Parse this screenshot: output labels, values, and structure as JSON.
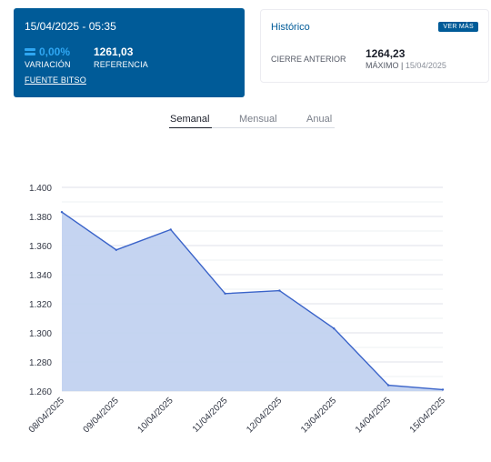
{
  "summary": {
    "datetime": "15/04/2025 - 05:35",
    "variation_value": "0,00%",
    "variation_label": "VARIACIÓN",
    "reference_value": "1261,03",
    "reference_label": "REFERENCIA",
    "source_link": "FUENTE BITSO"
  },
  "historico": {
    "title": "Histórico",
    "more_button": "VER MÁS",
    "previous_close_label": "CIERRE ANTERIOR",
    "maximum_value": "1264,23",
    "maximum_label": "MÁXIMO",
    "maximum_separator": " | ",
    "maximum_date": "15/04/2025"
  },
  "tabs": [
    "Semanal",
    "Mensual",
    "Anual"
  ],
  "active_tab": "Semanal",
  "colors": {
    "brand": "#005b98",
    "accent": "#2fa7f3",
    "line": "#3a63c9",
    "area": "#c2d2f0"
  },
  "chart_data": {
    "type": "area",
    "x": [
      "08/04/2025",
      "09/04/2025",
      "10/04/2025",
      "11/04/2025",
      "12/04/2025",
      "13/04/2025",
      "14/04/2025",
      "15/04/2025"
    ],
    "values": [
      1383,
      1357,
      1371,
      1327,
      1329,
      1303,
      1264,
      1261
    ],
    "ylim": [
      1260,
      1400
    ],
    "yticks": [
      1260,
      1280,
      1300,
      1320,
      1340,
      1360,
      1380,
      1400
    ],
    "ytick_labels": [
      "1.260",
      "1.280",
      "1.300",
      "1.320",
      "1.340",
      "1.360",
      "1.380",
      "1.400"
    ],
    "grid": true
  }
}
